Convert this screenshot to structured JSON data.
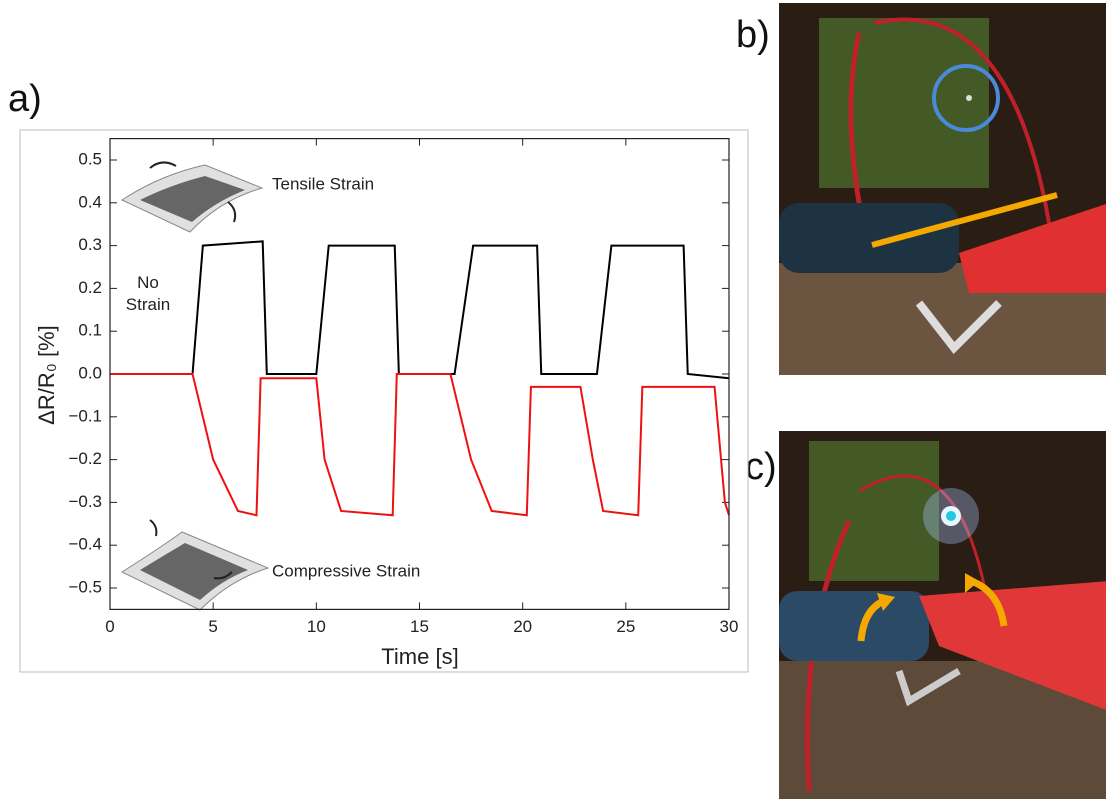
{
  "panel_labels": [
    "a)",
    "b)",
    "c)"
  ],
  "chart_data": {
    "type": "line",
    "xlabel": "Time [s]",
    "ylabel": "ΔR/R₀ [%]",
    "annotations": [
      "Tensile Strain",
      "No Strain",
      "Compressive Strain"
    ],
    "xlim": [
      0,
      30
    ],
    "ylim": [
      -0.55,
      0.55
    ],
    "xticks": [
      0,
      5,
      10,
      15,
      20,
      25,
      30
    ],
    "yticks": [
      0.5,
      0.4,
      0.3,
      0.2,
      0.1,
      {
        "value": 0,
        "label": "0.0"
      },
      {
        "value": -0.1,
        "label": "−0.1"
      },
      {
        "value": -0.2,
        "label": "−0.2"
      },
      {
        "value": -0.3,
        "label": "−0.3"
      },
      {
        "value": -0.4,
        "label": "−0.4"
      },
      {
        "value": -0.5,
        "label": "−0.5"
      }
    ],
    "series": [
      {
        "color": "#000000",
        "x": [
          0,
          4,
          4.5,
          7.4,
          7.6,
          10,
          10.6,
          13.8,
          14.0,
          16.7,
          17.6,
          20.7,
          20.9,
          23.6,
          24.3,
          27.8,
          28.0,
          30
        ],
        "values": [
          0.0,
          0.0,
          0.3,
          0.31,
          0.0,
          0.0,
          0.3,
          0.3,
          0.0,
          0.0,
          0.3,
          0.3,
          0.0,
          0.0,
          0.3,
          0.3,
          0.0,
          -0.01
        ]
      },
      {
        "color": "#ee1111",
        "x": [
          0,
          4,
          5,
          6.2,
          7.1,
          7.3,
          10,
          10.4,
          11.2,
          13.7,
          13.9,
          16.5,
          17.5,
          18.5,
          20.2,
          20.4,
          22.8,
          23.4,
          23.9,
          25.6,
          25.8,
          29.3,
          29.8,
          30
        ],
        "values": [
          0.0,
          0.0,
          -0.2,
          -0.32,
          -0.33,
          -0.01,
          -0.01,
          -0.2,
          -0.32,
          -0.33,
          0.0,
          0.0,
          -0.2,
          -0.32,
          -0.33,
          -0.03,
          -0.03,
          -0.2,
          -0.32,
          -0.33,
          -0.03,
          -0.03,
          -0.3,
          -0.33
        ]
      }
    ]
  }
}
